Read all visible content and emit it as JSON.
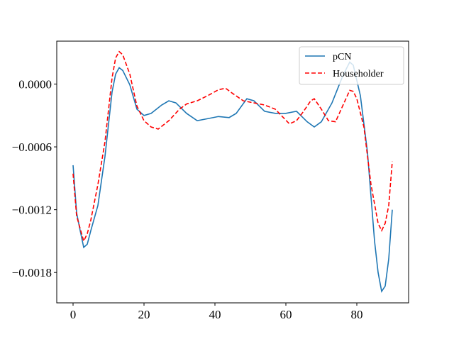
{
  "chart_data": {
    "type": "line",
    "series": [
      {
        "name": "pCN",
        "color": "#1f77b4",
        "dash": "solid",
        "x": [
          0,
          1,
          2,
          3,
          4,
          5,
          7,
          9,
          11,
          12,
          13,
          14,
          16,
          18,
          20,
          22,
          25,
          27,
          29,
          32,
          35,
          38,
          41,
          44,
          46,
          49,
          51,
          54,
          57,
          60,
          63,
          66,
          68,
          70,
          73,
          76,
          78,
          79,
          81,
          83,
          85,
          86,
          87,
          88,
          89,
          90
        ],
        "values": [
          -0.000775,
          -0.00123,
          -0.0014,
          -0.00156,
          -0.00153,
          -0.0014,
          -0.00116,
          -0.00069,
          -7.5e-05,
          9.5e-05,
          0.000156,
          0.00013,
          -7e-06,
          -0.00024,
          -0.0003,
          -0.00028,
          -0.0002,
          -0.00016,
          -0.00018,
          -0.00028,
          -0.00035,
          -0.00033,
          -0.00031,
          -0.00032,
          -0.00028,
          -0.00014,
          -0.00016,
          -0.00026,
          -0.00028,
          -0.00028,
          -0.00026,
          -0.00036,
          -0.00041,
          -0.00036,
          -0.00018,
          7.5e-05,
          0.00021,
          0.00018,
          -0.00011,
          -0.00065,
          -0.0015,
          -0.0018,
          -0.00198,
          -0.00193,
          -0.00167,
          -0.0012
        ]
      },
      {
        "name": "Householder",
        "color": "#ff0000",
        "dash": "dashed",
        "x": [
          0,
          1,
          3,
          4,
          5,
          7,
          9,
          11,
          12,
          13,
          14,
          16,
          18,
          20,
          22,
          24,
          27,
          30,
          32,
          35,
          38,
          41,
          43,
          45,
          48,
          51,
          54,
          57,
          59,
          61,
          63,
          65,
          67,
          68,
          70,
          72,
          74,
          76,
          78,
          79,
          80,
          82,
          84,
          86,
          87,
          88,
          89,
          90
        ],
        "values": [
          -0.000856,
          -0.00126,
          -0.0015,
          -0.00143,
          -0.0013,
          -0.00096,
          -0.00055,
          6e-05,
          0.00025,
          0.00031,
          0.00028,
          9.5e-05,
          -0.00021,
          -0.00035,
          -0.00041,
          -0.00043,
          -0.00035,
          -0.00024,
          -0.00019,
          -0.00016,
          -0.00011,
          -5.4e-05,
          -4e-05,
          -9e-05,
          -0.00016,
          -0.00018,
          -0.0002,
          -0.00024,
          -0.00031,
          -0.00038,
          -0.00035,
          -0.00026,
          -0.00016,
          -0.00014,
          -0.00024,
          -0.00035,
          -0.00036,
          -0.00021,
          -6e-05,
          -7e-05,
          -0.00014,
          -0.00041,
          -0.00096,
          -0.00133,
          -0.0014,
          -0.00133,
          -0.00116,
          -0.00074
        ]
      }
    ],
    "xlim": [
      -4.6,
      94.6
    ],
    "xticks": [
      0,
      20,
      40,
      60,
      80
    ],
    "ylim": [
      -0.00209,
      0.00041
    ],
    "yticks": [
      {
        "value": 0,
        "label": "0.0000"
      },
      {
        "value": -0.0006,
        "label": "−0.0006"
      },
      {
        "value": -0.0012,
        "label": "−0.0012"
      },
      {
        "value": -0.0018,
        "label": "−0.0018"
      }
    ],
    "legend": "upper right",
    "grid": false
  }
}
